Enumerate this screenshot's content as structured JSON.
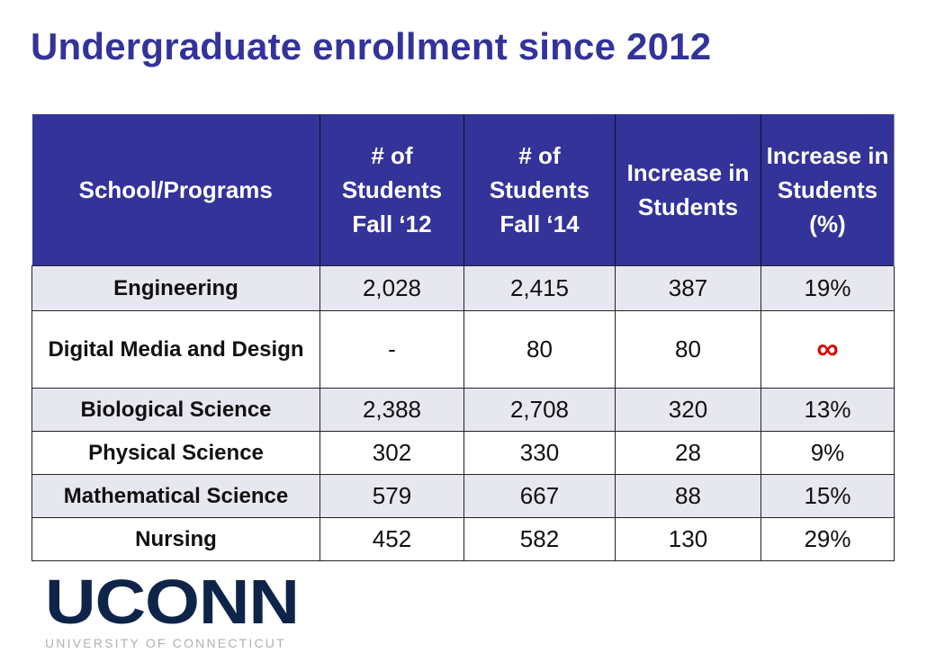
{
  "title": "Undergraduate enrollment since 2012",
  "table": {
    "headers": [
      "School/Programs",
      "# of Students Fall ‘12",
      "# of Students Fall ‘14",
      "Increase in Students",
      "Increase in Students (%)"
    ],
    "header_colors": {
      "background": "#333399",
      "text": "#ffffff"
    },
    "rows": [
      {
        "program": "Engineering",
        "fall12": "2,028",
        "fall14": "2,415",
        "increase": "387",
        "pct": "19%"
      },
      {
        "program": "Digital Media and Design",
        "fall12": "-",
        "fall14": "80",
        "increase": "80",
        "pct": "∞"
      },
      {
        "program": "Biological Science",
        "fall12": "2,388",
        "fall14": "2,708",
        "increase": "320",
        "pct": "13%"
      },
      {
        "program": "Physical Science",
        "fall12": "302",
        "fall14": "330",
        "increase": "28",
        "pct": "9%"
      },
      {
        "program": "Mathematical Science",
        "fall12": "579",
        "fall14": "667",
        "increase": "88",
        "pct": "15%"
      },
      {
        "program": "Nursing",
        "fall12": "452",
        "fall14": "582",
        "increase": "130",
        "pct": "29%"
      }
    ]
  },
  "logo": {
    "main": "UCONN",
    "sub": "UNIVERSITY OF CONNECTICUT"
  }
}
